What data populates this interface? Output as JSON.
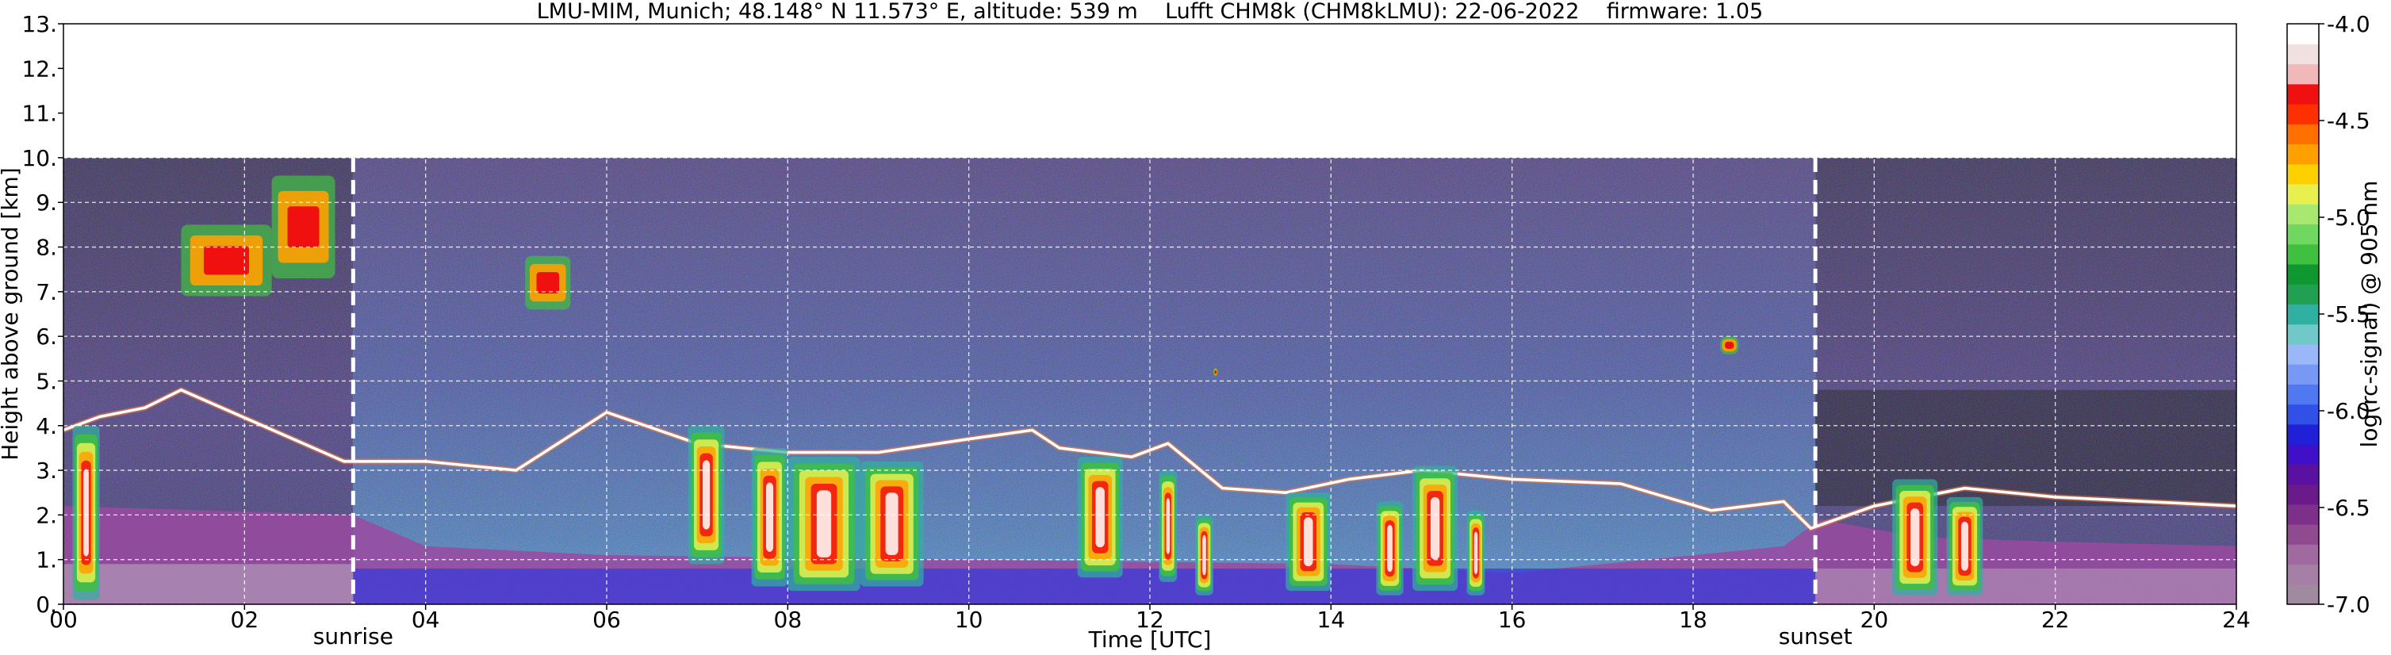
{
  "chart_data": {
    "type": "heatmap",
    "title": "LMU-MIM, Munich; 48.148° N 11.573° E, altitude: 539 m    Lufft CHM8k (CHM8kLMU): 22-06-2022    firmware: 1.05",
    "xlabel": "Time [UTC]",
    "ylabel": "Height above ground [km]",
    "xlim": [
      0,
      24
    ],
    "ylim": [
      0,
      13
    ],
    "x_ticks": [
      "00",
      "02",
      "04",
      "06",
      "08",
      "10",
      "12",
      "14",
      "16",
      "18",
      "20",
      "22",
      "24"
    ],
    "x_tick_values": [
      0,
      2,
      4,
      6,
      8,
      10,
      12,
      14,
      16,
      18,
      20,
      22,
      24
    ],
    "y_ticks": [
      "0.",
      "1.",
      "2.",
      "3.",
      "4.",
      "5.",
      "6.",
      "7.",
      "8.",
      "9.",
      "10.",
      "11.",
      "12.",
      "13."
    ],
    "y_tick_values": [
      0,
      1,
      2,
      3,
      4,
      5,
      6,
      7,
      8,
      9,
      10,
      11,
      12,
      13
    ],
    "grid": true,
    "signal_top_km": 10,
    "markers": [
      {
        "label": "sunrise",
        "x": 3.2
      },
      {
        "label": "sunset",
        "x": 19.35
      }
    ],
    "colorbar": {
      "label": "log(rc-signal) @ 905 nm",
      "range": [
        -7.0,
        -4.0
      ],
      "ticks": [
        "-4.0",
        "-4.5",
        "-5.0",
        "-5.5",
        "-6.0",
        "-6.5",
        "-7.0"
      ],
      "tick_values": [
        -4.0,
        -4.5,
        -5.0,
        -5.5,
        -6.0,
        -6.5,
        -7.0
      ],
      "colors": [
        "#a08aa0",
        "#a57fa5",
        "#a06aa0",
        "#904a90",
        "#7e2f8a",
        "#6a1a8a",
        "#5a10a0",
        "#3f10c8",
        "#2020d8",
        "#3050e8",
        "#5078f0",
        "#7898f5",
        "#9ab8f8",
        "#70c8c8",
        "#30b0a0",
        "#20a050",
        "#109830",
        "#40c040",
        "#70d860",
        "#a8e870",
        "#e8f050",
        "#ffd000",
        "#ffa000",
        "#ff7000",
        "#ff3000",
        "#f01010",
        "#f0b8b8",
        "#f0e0e0",
        "#ffffff"
      ]
    },
    "features": {
      "boundary_layer_top": [
        [
          0,
          3.9
        ],
        [
          0.4,
          4.2
        ],
        [
          0.9,
          4.4
        ],
        [
          1.3,
          4.8
        ],
        [
          3.1,
          3.2
        ],
        [
          4.0,
          3.2
        ],
        [
          5.0,
          3.0
        ],
        [
          6.0,
          4.3
        ],
        [
          7.0,
          3.6
        ],
        [
          8.0,
          3.4
        ],
        [
          9.0,
          3.4
        ],
        [
          10.0,
          3.7
        ],
        [
          10.7,
          3.9
        ],
        [
          11.0,
          3.5
        ],
        [
          11.8,
          3.3
        ],
        [
          12.2,
          3.6
        ],
        [
          12.8,
          2.6
        ],
        [
          13.5,
          2.5
        ],
        [
          14.2,
          2.8
        ],
        [
          15.0,
          3.0
        ],
        [
          16.0,
          2.8
        ],
        [
          17.2,
          2.7
        ],
        [
          18.2,
          2.1
        ],
        [
          19.0,
          2.3
        ],
        [
          19.3,
          1.7
        ],
        [
          20.0,
          2.2
        ],
        [
          21.0,
          2.6
        ],
        [
          22.0,
          2.4
        ],
        [
          23.0,
          2.3
        ],
        [
          24.0,
          2.2
        ]
      ],
      "residual_layer_top": [
        [
          0,
          2.2
        ],
        [
          3.2,
          2.0
        ],
        [
          4.0,
          1.3
        ],
        [
          6.0,
          1.1
        ],
        [
          10.0,
          1.0
        ],
        [
          14.0,
          0.9
        ],
        [
          16.0,
          0.7
        ],
        [
          19.0,
          1.3
        ],
        [
          19.4,
          1.9
        ],
        [
          20.5,
          1.5
        ],
        [
          22.0,
          1.4
        ],
        [
          24.0,
          1.3
        ]
      ],
      "clouds": [
        {
          "x": [
            1.3,
            2.3
          ],
          "y": [
            6.9,
            8.5
          ]
        },
        {
          "x": [
            2.3,
            3.0
          ],
          "y": [
            7.3,
            9.6
          ]
        },
        {
          "x": [
            5.1,
            5.6
          ],
          "y": [
            6.6,
            7.8
          ]
        },
        {
          "x": [
            12.7,
            12.75
          ],
          "y": [
            5.1,
            5.3
          ]
        },
        {
          "x": [
            18.3,
            18.5
          ],
          "y": [
            5.6,
            6.0
          ]
        }
      ],
      "convective_plumes": [
        {
          "x": [
            0.1,
            0.4
          ],
          "y": [
            0.1,
            4.0
          ]
        },
        {
          "x": [
            6.9,
            7.3
          ],
          "y": [
            0.9,
            4.0
          ]
        },
        {
          "x": [
            7.6,
            8.0
          ],
          "y": [
            0.4,
            3.5
          ]
        },
        {
          "x": [
            8.0,
            8.8
          ],
          "y": [
            0.3,
            3.3
          ]
        },
        {
          "x": [
            8.8,
            9.5
          ],
          "y": [
            0.4,
            3.2
          ]
        },
        {
          "x": [
            11.2,
            11.7
          ],
          "y": [
            0.6,
            3.3
          ]
        },
        {
          "x": [
            12.1,
            12.3
          ],
          "y": [
            0.5,
            3.0
          ]
        },
        {
          "x": [
            12.5,
            12.7
          ],
          "y": [
            0.2,
            2.0
          ]
        },
        {
          "x": [
            13.5,
            14.0
          ],
          "y": [
            0.3,
            2.5
          ]
        },
        {
          "x": [
            14.5,
            14.8
          ],
          "y": [
            0.2,
            2.3
          ]
        },
        {
          "x": [
            14.9,
            15.4
          ],
          "y": [
            0.3,
            3.1
          ]
        },
        {
          "x": [
            15.5,
            15.7
          ],
          "y": [
            0.2,
            2.1
          ]
        },
        {
          "x": [
            20.2,
            20.7
          ],
          "y": [
            0.2,
            2.8
          ]
        },
        {
          "x": [
            20.8,
            21.2
          ],
          "y": [
            0.2,
            2.4
          ]
        }
      ]
    }
  }
}
